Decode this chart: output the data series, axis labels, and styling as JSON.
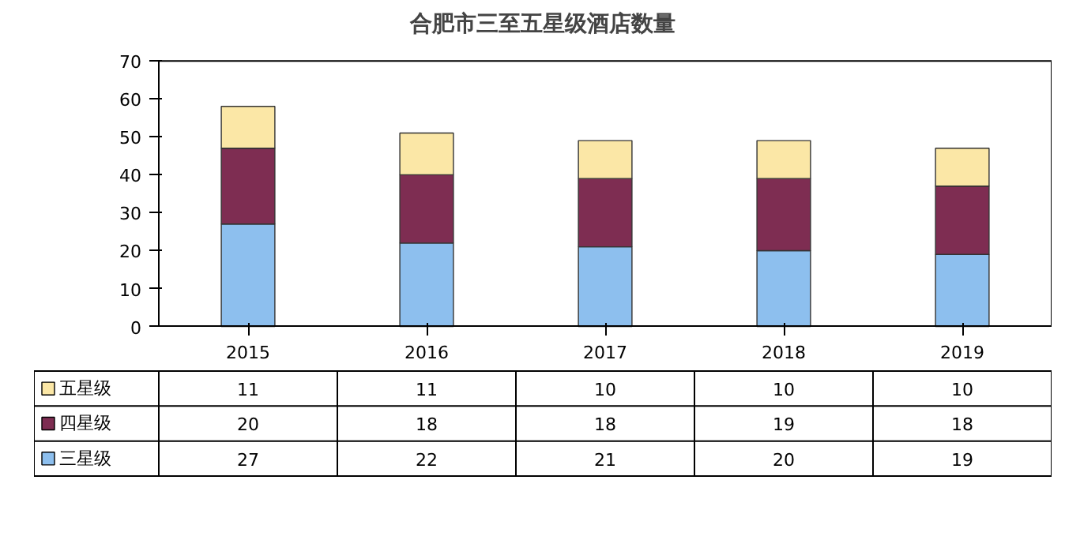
{
  "chart_data": {
    "type": "bar",
    "title": "合肥市三至五星级酒店数量",
    "categories": [
      "2015",
      "2016",
      "2017",
      "2018",
      "2019"
    ],
    "stacked": true,
    "ylim": [
      0,
      70
    ],
    "yticks": [
      0,
      10,
      20,
      30,
      40,
      50,
      60,
      70
    ],
    "data_labels": true,
    "legend": "bottom",
    "series": [
      {
        "name": "三星级",
        "color": "#8dbfee",
        "values": [
          27,
          22,
          21,
          20,
          19
        ]
      },
      {
        "name": "四星级",
        "color": "#7e2d52",
        "values": [
          20,
          18,
          18,
          19,
          18
        ]
      },
      {
        "name": "五星级",
        "color": "#fbe7a6",
        "values": [
          11,
          11,
          10,
          10,
          10
        ]
      }
    ]
  }
}
